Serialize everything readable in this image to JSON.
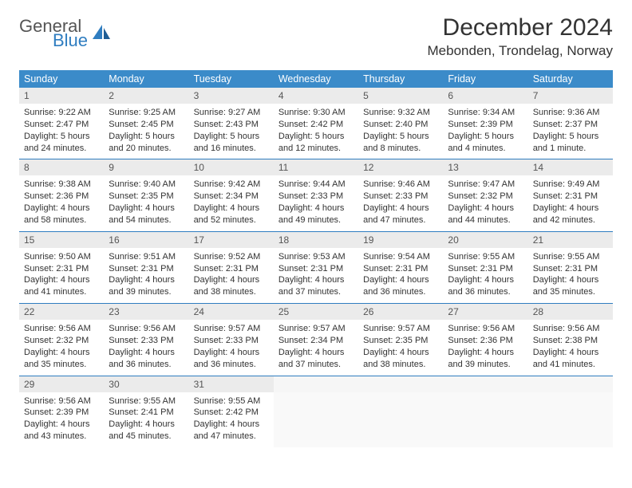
{
  "brand": {
    "part1": "General",
    "part2": "Blue"
  },
  "title": "December 2024",
  "location": "Mebonden, Trondelag, Norway",
  "colors": {
    "header_bg": "#3b8bc9",
    "header_text": "#ffffff",
    "daynum_bg": "#ebebeb",
    "rule": "#2f7dc0",
    "text": "#333333",
    "logo_blue": "#2f7dc0",
    "logo_gray": "#555555"
  },
  "day_headers": [
    "Sunday",
    "Monday",
    "Tuesday",
    "Wednesday",
    "Thursday",
    "Friday",
    "Saturday"
  ],
  "weeks": [
    [
      {
        "n": "1",
        "sr": "9:22 AM",
        "ss": "2:47 PM",
        "dl": "5 hours and 24 minutes."
      },
      {
        "n": "2",
        "sr": "9:25 AM",
        "ss": "2:45 PM",
        "dl": "5 hours and 20 minutes."
      },
      {
        "n": "3",
        "sr": "9:27 AM",
        "ss": "2:43 PM",
        "dl": "5 hours and 16 minutes."
      },
      {
        "n": "4",
        "sr": "9:30 AM",
        "ss": "2:42 PM",
        "dl": "5 hours and 12 minutes."
      },
      {
        "n": "5",
        "sr": "9:32 AM",
        "ss": "2:40 PM",
        "dl": "5 hours and 8 minutes."
      },
      {
        "n": "6",
        "sr": "9:34 AM",
        "ss": "2:39 PM",
        "dl": "5 hours and 4 minutes."
      },
      {
        "n": "7",
        "sr": "9:36 AM",
        "ss": "2:37 PM",
        "dl": "5 hours and 1 minute."
      }
    ],
    [
      {
        "n": "8",
        "sr": "9:38 AM",
        "ss": "2:36 PM",
        "dl": "4 hours and 58 minutes."
      },
      {
        "n": "9",
        "sr": "9:40 AM",
        "ss": "2:35 PM",
        "dl": "4 hours and 54 minutes."
      },
      {
        "n": "10",
        "sr": "9:42 AM",
        "ss": "2:34 PM",
        "dl": "4 hours and 52 minutes."
      },
      {
        "n": "11",
        "sr": "9:44 AM",
        "ss": "2:33 PM",
        "dl": "4 hours and 49 minutes."
      },
      {
        "n": "12",
        "sr": "9:46 AM",
        "ss": "2:33 PM",
        "dl": "4 hours and 47 minutes."
      },
      {
        "n": "13",
        "sr": "9:47 AM",
        "ss": "2:32 PM",
        "dl": "4 hours and 44 minutes."
      },
      {
        "n": "14",
        "sr": "9:49 AM",
        "ss": "2:31 PM",
        "dl": "4 hours and 42 minutes."
      }
    ],
    [
      {
        "n": "15",
        "sr": "9:50 AM",
        "ss": "2:31 PM",
        "dl": "4 hours and 41 minutes."
      },
      {
        "n": "16",
        "sr": "9:51 AM",
        "ss": "2:31 PM",
        "dl": "4 hours and 39 minutes."
      },
      {
        "n": "17",
        "sr": "9:52 AM",
        "ss": "2:31 PM",
        "dl": "4 hours and 38 minutes."
      },
      {
        "n": "18",
        "sr": "9:53 AM",
        "ss": "2:31 PM",
        "dl": "4 hours and 37 minutes."
      },
      {
        "n": "19",
        "sr": "9:54 AM",
        "ss": "2:31 PM",
        "dl": "4 hours and 36 minutes."
      },
      {
        "n": "20",
        "sr": "9:55 AM",
        "ss": "2:31 PM",
        "dl": "4 hours and 36 minutes."
      },
      {
        "n": "21",
        "sr": "9:55 AM",
        "ss": "2:31 PM",
        "dl": "4 hours and 35 minutes."
      }
    ],
    [
      {
        "n": "22",
        "sr": "9:56 AM",
        "ss": "2:32 PM",
        "dl": "4 hours and 35 minutes."
      },
      {
        "n": "23",
        "sr": "9:56 AM",
        "ss": "2:33 PM",
        "dl": "4 hours and 36 minutes."
      },
      {
        "n": "24",
        "sr": "9:57 AM",
        "ss": "2:33 PM",
        "dl": "4 hours and 36 minutes."
      },
      {
        "n": "25",
        "sr": "9:57 AM",
        "ss": "2:34 PM",
        "dl": "4 hours and 37 minutes."
      },
      {
        "n": "26",
        "sr": "9:57 AM",
        "ss": "2:35 PM",
        "dl": "4 hours and 38 minutes."
      },
      {
        "n": "27",
        "sr": "9:56 AM",
        "ss": "2:36 PM",
        "dl": "4 hours and 39 minutes."
      },
      {
        "n": "28",
        "sr": "9:56 AM",
        "ss": "2:38 PM",
        "dl": "4 hours and 41 minutes."
      }
    ],
    [
      {
        "n": "29",
        "sr": "9:56 AM",
        "ss": "2:39 PM",
        "dl": "4 hours and 43 minutes."
      },
      {
        "n": "30",
        "sr": "9:55 AM",
        "ss": "2:41 PM",
        "dl": "4 hours and 45 minutes."
      },
      {
        "n": "31",
        "sr": "9:55 AM",
        "ss": "2:42 PM",
        "dl": "4 hours and 47 minutes."
      },
      null,
      null,
      null,
      null
    ]
  ],
  "labels": {
    "sunrise": "Sunrise: ",
    "sunset": "Sunset: ",
    "daylight": "Daylight: "
  }
}
